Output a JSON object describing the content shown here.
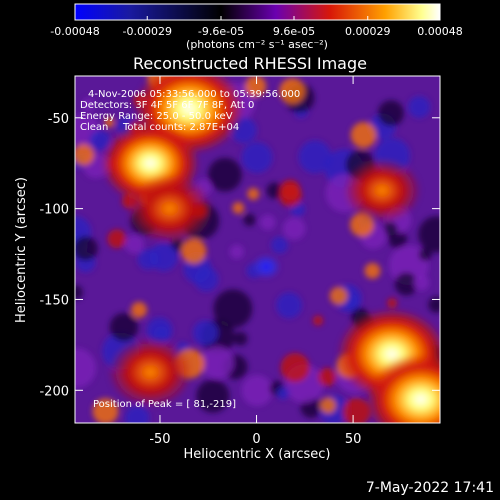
{
  "colorbar": {
    "ticks": [
      "-0.00048",
      "-0.00029",
      "-9.6e-05",
      "9.6e-05",
      "0.00029",
      "0.00048"
    ],
    "tick_values": [
      -0.00048,
      -0.00029,
      -9.6e-05,
      9.6e-05,
      0.00029,
      0.00048
    ],
    "units": "(photons cm⁻² s⁻¹ asec⁻²)",
    "colors": [
      "#0000ff",
      "#000000",
      "#6a00b0",
      "#d81808",
      "#ff8a00",
      "#ffff90",
      "#ffffff"
    ]
  },
  "chart_data": {
    "type": "heatmap",
    "title": "Reconstructed RHESSI Image",
    "xlabel": "Heliocentric X (arcsec)",
    "ylabel": "Heliocentric Y (arcsec)",
    "xlim": [
      -94,
      95
    ],
    "ylim": [
      -218,
      -27
    ],
    "xticks": [
      -50,
      0,
      50
    ],
    "yticks": [
      -50,
      -100,
      -150,
      -200
    ],
    "zlim": [
      -0.00048,
      0.00048
    ],
    "annotations": {
      "time_range": "4-Nov-2006 05:33:56.000 to 05:39:56.000",
      "detectors": "Detectors: 3F 4F 5F 6F 7F 8F, Att 0",
      "energy_range": "Energy Range: 25.0 - 50.0 keV",
      "method": "Clean",
      "total_counts": "Total counts: 2.87E+04",
      "peak_position": "Position of Peak = [ 81,-219]"
    },
    "bright_regions": [
      {
        "x": -35,
        "y": -45,
        "intensity": 0.00048
      },
      {
        "x": -55,
        "y": -75,
        "intensity": 0.0004
      },
      {
        "x": -45,
        "y": -100,
        "intensity": 0.0003
      },
      {
        "x": 70,
        "y": -180,
        "intensity": 0.00048
      },
      {
        "x": 85,
        "y": -205,
        "intensity": 0.00048
      },
      {
        "x": -55,
        "y": -190,
        "intensity": 0.0003
      },
      {
        "x": 65,
        "y": -90,
        "intensity": 0.00025
      }
    ]
  },
  "footer": {
    "date": "7-May-2022 17:41"
  }
}
